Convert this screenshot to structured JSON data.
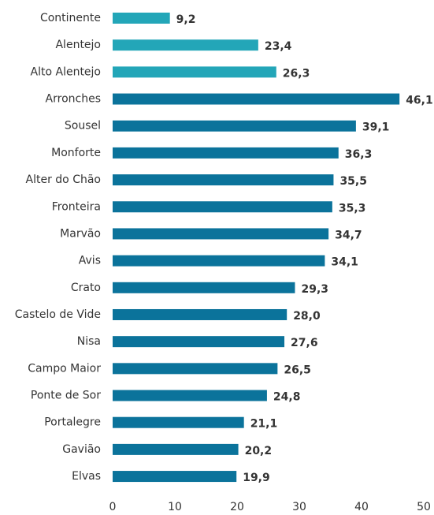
{
  "chart_data": {
    "type": "barh",
    "categories": [
      "Continente",
      "Alentejo",
      "Alto Alentejo",
      "Arronches",
      "Sousel",
      "Monforte",
      "Alter do Chão",
      "Fronteira",
      "Marvão",
      "Avis",
      "Crato",
      "Castelo de Vide",
      "Nisa",
      "Campo Maior",
      "Ponte de Sor",
      "Portalegre",
      "Gavião",
      "Elvas"
    ],
    "values": [
      9.2,
      23.4,
      26.3,
      46.1,
      39.1,
      36.3,
      35.5,
      35.3,
      34.7,
      34.1,
      29.3,
      28.0,
      27.6,
      26.5,
      24.8,
      21.1,
      20.2,
      19.9
    ],
    "value_labels": [
      "9,2",
      "23,4",
      "26,3",
      "46,1",
      "39,1",
      "36,3",
      "35,5",
      "35,3",
      "34,7",
      "34,1",
      "29,3",
      "28,0",
      "27,6",
      "26,5",
      "24,8",
      "21,1",
      "20,2",
      "19,9"
    ],
    "colors": [
      "#23a6b8",
      "#23a6b8",
      "#23a6b8",
      "#0b739b",
      "#0b739b",
      "#0b739b",
      "#0b739b",
      "#0b739b",
      "#0b739b",
      "#0b739b",
      "#0b739b",
      "#0b739b",
      "#0b739b",
      "#0b739b",
      "#0b739b",
      "#0b739b",
      "#0b739b",
      "#0b739b"
    ],
    "xlim": [
      0,
      50
    ],
    "xticks": [
      0,
      10,
      20,
      30,
      40,
      50
    ],
    "grid": false
  }
}
